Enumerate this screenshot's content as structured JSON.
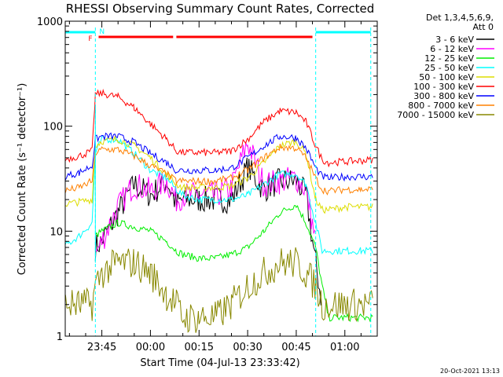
{
  "chart_data": {
    "type": "line",
    "title": "RHESSI Observing Summary Count Rates, Corrected",
    "xlabel": "Start Time (04-Jul-13 23:33:42)",
    "ylabel": "Corrected Count Rate (s⁻¹ detector⁻¹)",
    "yscale": "log",
    "ylim": [
      1,
      1000
    ],
    "xlim": [
      "04-Jul-13 23:33:42",
      "05-Jul-13 01:10:00"
    ],
    "x_ticks": [
      "23:45",
      "00:00",
      "00:15",
      "00:30",
      "00:45",
      "01:00"
    ],
    "y_ticks": [
      "1",
      "10",
      "100",
      "1000"
    ],
    "grid": false,
    "legend_header": [
      "Det 1,3,4,5,6,9,",
      "Att 0"
    ],
    "legend_position": "right",
    "x": [
      "23:33",
      "23:38",
      "23:42",
      "23:43",
      "23:45",
      "23:50",
      "23:55",
      "00:00",
      "00:05",
      "00:08",
      "00:10",
      "00:15",
      "00:20",
      "00:25",
      "00:30",
      "00:35",
      "00:40",
      "00:45",
      "00:48",
      "00:51",
      "00:53",
      "00:55",
      "01:00",
      "01:05",
      "01:09"
    ],
    "series": [
      {
        "name": "3 - 6 keV",
        "color": "#000000",
        "values": [
          null,
          null,
          null,
          7,
          8,
          15,
          28,
          22,
          30,
          18,
          20,
          20,
          20,
          20,
          40,
          25,
          30,
          30,
          22,
          5,
          2,
          null,
          null,
          null,
          null
        ]
      },
      {
        "name": "6 - 12 keV",
        "color": "#ff00ff",
        "values": [
          null,
          null,
          null,
          6,
          8,
          17,
          28,
          24,
          30,
          20,
          22,
          22,
          22,
          26,
          70,
          28,
          30,
          32,
          25,
          8,
          null,
          null,
          null,
          null,
          null
        ]
      },
      {
        "name": "12 - 25 keV",
        "color": "#00ee00",
        "values": [
          null,
          null,
          null,
          9,
          10,
          12,
          11,
          10,
          8,
          6.5,
          6,
          5.5,
          5.5,
          6,
          7,
          10,
          15,
          18,
          12,
          7,
          3,
          1.5,
          1.5,
          1.5,
          1.5
        ]
      },
      {
        "name": "25 - 50 keV",
        "color": "#00ffff",
        "values": [
          7,
          9,
          12,
          55,
          75,
          75,
          55,
          38,
          32,
          25,
          22,
          20,
          20,
          20,
          22,
          28,
          35,
          35,
          28,
          12,
          6.5,
          6.5,
          6.5,
          6.5,
          6.5
        ]
      },
      {
        "name": "50 - 100 keV",
        "color": "#dddd00",
        "values": [
          18,
          19,
          20,
          65,
          72,
          75,
          65,
          50,
          35,
          28,
          26,
          26,
          26,
          27,
          32,
          45,
          65,
          72,
          55,
          20,
          16,
          16,
          17,
          17,
          17
        ]
      },
      {
        "name": "100 - 300 keV",
        "color": "#ff0000",
        "values": [
          48,
          52,
          58,
          200,
          205,
          190,
          150,
          105,
          75,
          58,
          56,
          56,
          56,
          58,
          75,
          110,
          140,
          135,
          110,
          65,
          48,
          45,
          46,
          47,
          48
        ]
      },
      {
        "name": "300 - 800 keV",
        "color": "#0000ff",
        "values": [
          33,
          36,
          42,
          75,
          80,
          80,
          70,
          55,
          45,
          38,
          38,
          38,
          38,
          40,
          50,
          65,
          80,
          78,
          62,
          40,
          33,
          32,
          33,
          33,
          33
        ]
      },
      {
        "name": "800 - 7000 keV",
        "color": "#ff8000",
        "values": [
          24,
          26,
          30,
          55,
          60,
          60,
          52,
          42,
          35,
          30,
          30,
          30,
          30,
          32,
          38,
          50,
          63,
          62,
          50,
          32,
          25,
          24,
          25,
          25,
          25
        ]
      },
      {
        "name": "7000 - 15000 keV",
        "color": "#888800",
        "values": [
          2,
          2,
          2,
          3,
          4,
          5,
          5,
          4,
          2.5,
          2,
          1.5,
          1.5,
          1.5,
          2,
          3,
          4,
          5,
          5,
          4,
          3,
          2,
          2,
          2,
          2,
          2
        ]
      }
    ],
    "annotations": {
      "flags": [
        "F",
        "N"
      ],
      "attenuator_bar_color": "#00ffff",
      "flare_bar_color": "#ff0000"
    }
  },
  "footer": {
    "timestamp": "20-Oct-2021 13:13"
  }
}
